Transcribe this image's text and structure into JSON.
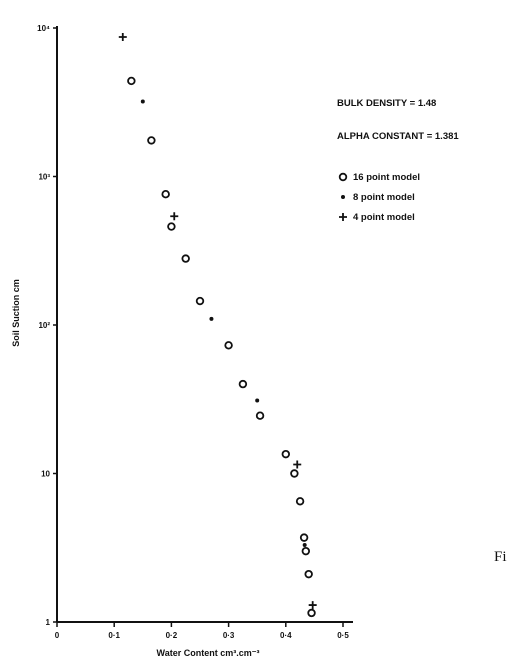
{
  "chart_data": {
    "type": "scatter",
    "title": "",
    "xlabel": "Water Content  cm³.cm⁻³",
    "ylabel": "Soil Suction  cm",
    "xlim": [
      0,
      0.5
    ],
    "ylim": [
      1,
      10000
    ],
    "y_scale": "log",
    "x_ticks": [
      {
        "value": 0,
        "label": "0"
      },
      {
        "value": 0.1,
        "label": "0·1"
      },
      {
        "value": 0.2,
        "label": "0·2"
      },
      {
        "value": 0.3,
        "label": "0·3"
      },
      {
        "value": 0.4,
        "label": "0·4"
      },
      {
        "value": 0.5,
        "label": "0·5"
      }
    ],
    "y_ticks": [
      {
        "value": 1,
        "label": "1"
      },
      {
        "value": 10,
        "label": "10"
      },
      {
        "value": 100,
        "label": "10²"
      },
      {
        "value": 1000,
        "label": "10³"
      },
      {
        "value": 10000,
        "label": "10⁴"
      }
    ],
    "annotations": [
      "BULK DENSITY = 1.48",
      "ALPHA CONSTANT = 1.381"
    ],
    "series": [
      {
        "name": "16 point model",
        "marker": "circle",
        "x": [
          0.13,
          0.165,
          0.19,
          0.2,
          0.225,
          0.25,
          0.3,
          0.325,
          0.355,
          0.4,
          0.415,
          0.425,
          0.432,
          0.435,
          0.44,
          0.445
        ],
        "y": [
          4400,
          1750,
          760,
          460,
          280,
          145,
          73,
          40,
          24.5,
          13.5,
          10,
          6.5,
          3.7,
          3.0,
          2.1,
          1.15
        ]
      },
      {
        "name": "8 point model",
        "marker": "dot",
        "x": [
          0.15,
          0.27,
          0.35,
          0.433
        ],
        "y": [
          3200,
          110,
          31,
          3.3
        ]
      },
      {
        "name": "4 point model",
        "marker": "plus",
        "x": [
          0.115,
          0.205,
          0.42,
          0.447
        ],
        "y": [
          8700,
          540,
          11.5,
          1.3
        ]
      }
    ]
  },
  "caption": "Fi"
}
